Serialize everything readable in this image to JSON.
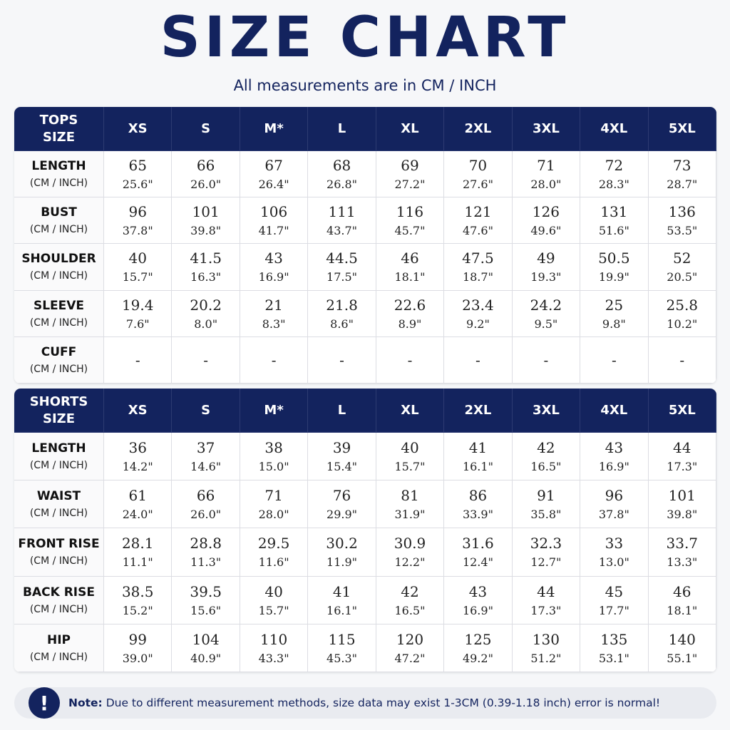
{
  "header": {
    "title": "SIZE CHART",
    "subtitle": "All measurements are in CM / INCH"
  },
  "tables": [
    {
      "heading": "TOPS SIZE",
      "sizes": [
        "XS",
        "S",
        "M*",
        "L",
        "XL",
        "2XL",
        "3XL",
        "4XL",
        "5XL"
      ],
      "rows": [
        {
          "label": "LENGTH",
          "unit": "(CM / INCH)",
          "cells": [
            [
              "65",
              "25.6\""
            ],
            [
              "66",
              "26.0\""
            ],
            [
              "67",
              "26.4\""
            ],
            [
              "68",
              "26.8\""
            ],
            [
              "69",
              "27.2\""
            ],
            [
              "70",
              "27.6\""
            ],
            [
              "71",
              "28.0\""
            ],
            [
              "72",
              "28.3\""
            ],
            [
              "73",
              "28.7\""
            ]
          ]
        },
        {
          "label": "BUST",
          "unit": "(CM / INCH)",
          "cells": [
            [
              "96",
              "37.8\""
            ],
            [
              "101",
              "39.8\""
            ],
            [
              "106",
              "41.7\""
            ],
            [
              "111",
              "43.7\""
            ],
            [
              "116",
              "45.7\""
            ],
            [
              "121",
              "47.6\""
            ],
            [
              "126",
              "49.6\""
            ],
            [
              "131",
              "51.6\""
            ],
            [
              "136",
              "53.5\""
            ]
          ]
        },
        {
          "label": "SHOULDER",
          "unit": "(CM / INCH)",
          "cells": [
            [
              "40",
              "15.7\""
            ],
            [
              "41.5",
              "16.3\""
            ],
            [
              "43",
              "16.9\""
            ],
            [
              "44.5",
              "17.5\""
            ],
            [
              "46",
              "18.1\""
            ],
            [
              "47.5",
              "18.7\""
            ],
            [
              "49",
              "19.3\""
            ],
            [
              "50.5",
              "19.9\""
            ],
            [
              "52",
              "20.5\""
            ]
          ]
        },
        {
          "label": "SLEEVE",
          "unit": "(CM / INCH)",
          "cells": [
            [
              "19.4",
              "7.6\""
            ],
            [
              "20.2",
              "8.0\""
            ],
            [
              "21",
              "8.3\""
            ],
            [
              "21.8",
              "8.6\""
            ],
            [
              "22.6",
              "8.9\""
            ],
            [
              "23.4",
              "9.2\""
            ],
            [
              "24.2",
              "9.5\""
            ],
            [
              "25",
              "9.8\""
            ],
            [
              "25.8",
              "10.2\""
            ]
          ]
        },
        {
          "label": "CUFF",
          "unit": "(CM / INCH)",
          "cells": [
            [
              "-"
            ],
            [
              "-"
            ],
            [
              "-"
            ],
            [
              "-"
            ],
            [
              "-"
            ],
            [
              "-"
            ],
            [
              "-"
            ],
            [
              "-"
            ],
            [
              "-"
            ]
          ]
        }
      ]
    },
    {
      "heading": "SHORTS SIZE",
      "sizes": [
        "XS",
        "S",
        "M*",
        "L",
        "XL",
        "2XL",
        "3XL",
        "4XL",
        "5XL"
      ],
      "rows": [
        {
          "label": "LENGTH",
          "unit": "(CM / INCH)",
          "cells": [
            [
              "36",
              "14.2\""
            ],
            [
              "37",
              "14.6\""
            ],
            [
              "38",
              "15.0\""
            ],
            [
              "39",
              "15.4\""
            ],
            [
              "40",
              "15.7\""
            ],
            [
              "41",
              "16.1\""
            ],
            [
              "42",
              "16.5\""
            ],
            [
              "43",
              "16.9\""
            ],
            [
              "44",
              "17.3\""
            ]
          ]
        },
        {
          "label": "WAIST",
          "unit": "(CM / INCH)",
          "cells": [
            [
              "61",
              "24.0\""
            ],
            [
              "66",
              "26.0\""
            ],
            [
              "71",
              "28.0\""
            ],
            [
              "76",
              "29.9\""
            ],
            [
              "81",
              "31.9\""
            ],
            [
              "86",
              "33.9\""
            ],
            [
              "91",
              "35.8\""
            ],
            [
              "96",
              "37.8\""
            ],
            [
              "101",
              "39.8\""
            ]
          ]
        },
        {
          "label": "FRONT RISE",
          "unit": "(CM / INCH)",
          "cells": [
            [
              "28.1",
              "11.1\""
            ],
            [
              "28.8",
              "11.3\""
            ],
            [
              "29.5",
              "11.6\""
            ],
            [
              "30.2",
              "11.9\""
            ],
            [
              "30.9",
              "12.2\""
            ],
            [
              "31.6",
              "12.4\""
            ],
            [
              "32.3",
              "12.7\""
            ],
            [
              "33",
              "13.0\""
            ],
            [
              "33.7",
              "13.3\""
            ]
          ]
        },
        {
          "label": "BACK RISE",
          "unit": "(CM / INCH)",
          "cells": [
            [
              "38.5",
              "15.2\""
            ],
            [
              "39.5",
              "15.6\""
            ],
            [
              "40",
              "15.7\""
            ],
            [
              "41",
              "16.1\""
            ],
            [
              "42",
              "16.5\""
            ],
            [
              "43",
              "16.9\""
            ],
            [
              "44",
              "17.3\""
            ],
            [
              "45",
              "17.7\""
            ],
            [
              "46",
              "18.1\""
            ]
          ]
        },
        {
          "label": "HIP",
          "unit": "(CM / INCH)",
          "cells": [
            [
              "99",
              "39.0\""
            ],
            [
              "104",
              "40.9\""
            ],
            [
              "110",
              "43.3\""
            ],
            [
              "115",
              "45.3\""
            ],
            [
              "120",
              "47.2\""
            ],
            [
              "125",
              "49.2\""
            ],
            [
              "130",
              "51.2\""
            ],
            [
              "135",
              "53.1\""
            ],
            [
              "140",
              "55.1\""
            ]
          ]
        }
      ]
    }
  ],
  "note": {
    "icon": "!",
    "label": "Note:",
    "text": "Due to different measurement methods, size data may exist 1-3CM (0.39-1.18 inch) error is normal!"
  }
}
